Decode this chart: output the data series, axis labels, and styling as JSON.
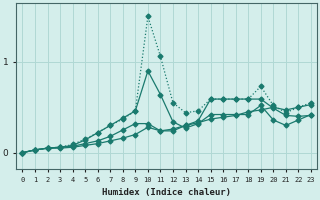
{
  "xlabel": "Humidex (Indice chaleur)",
  "ylabel": "",
  "line_color": "#1a7a6e",
  "bg_color": "#d4eeeb",
  "grid_color": "#b0d8d4",
  "text_color": "#222222",
  "xlim": [
    -0.5,
    23.5
  ],
  "ylim": [
    -0.18,
    1.65
  ],
  "yticks": [
    0,
    1
  ],
  "xticks": [
    0,
    1,
    2,
    3,
    4,
    5,
    6,
    7,
    8,
    9,
    10,
    11,
    12,
    13,
    14,
    15,
    16,
    17,
    18,
    19,
    20,
    21,
    22,
    23
  ],
  "series": [
    {
      "y": [
        0.0,
        0.03,
        0.05,
        0.05,
        0.06,
        0.08,
        0.1,
        0.13,
        0.16,
        0.2,
        0.28,
        0.24,
        0.26,
        0.3,
        0.33,
        0.37,
        0.39,
        0.41,
        0.45,
        0.47,
        0.5,
        0.47,
        0.5,
        0.53
      ],
      "linestyle": "-",
      "marker": true
    },
    {
      "y": [
        0.0,
        0.03,
        0.05,
        0.06,
        0.07,
        0.1,
        0.13,
        0.18,
        0.25,
        0.32,
        0.32,
        0.24,
        0.24,
        0.3,
        0.35,
        0.59,
        0.59,
        0.59,
        0.59,
        0.59,
        0.49,
        0.41,
        0.4,
        0.41
      ],
      "linestyle": "-",
      "marker": true
    },
    {
      "y": [
        0.0,
        0.03,
        0.05,
        0.06,
        0.08,
        0.14,
        0.22,
        0.3,
        0.38,
        0.46,
        0.9,
        0.64,
        0.34,
        0.27,
        0.32,
        0.42,
        0.42,
        0.42,
        0.42,
        0.52,
        0.36,
        0.3,
        0.36,
        0.42
      ],
      "linestyle": "-",
      "marker": true
    },
    {
      "y": [
        0.0,
        0.03,
        0.05,
        0.06,
        0.09,
        0.15,
        0.22,
        0.3,
        0.37,
        0.46,
        1.5,
        1.06,
        0.55,
        0.44,
        0.46,
        0.59,
        0.59,
        0.59,
        0.59,
        0.73,
        0.52,
        0.44,
        0.5,
        0.55
      ],
      "linestyle": ":",
      "marker": true
    }
  ]
}
